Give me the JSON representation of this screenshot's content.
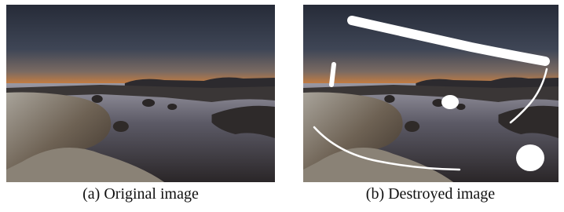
{
  "figure": {
    "panels": [
      {
        "caption": "(a) Original image"
      },
      {
        "caption": "(b) Destroyed image"
      }
    ]
  }
}
